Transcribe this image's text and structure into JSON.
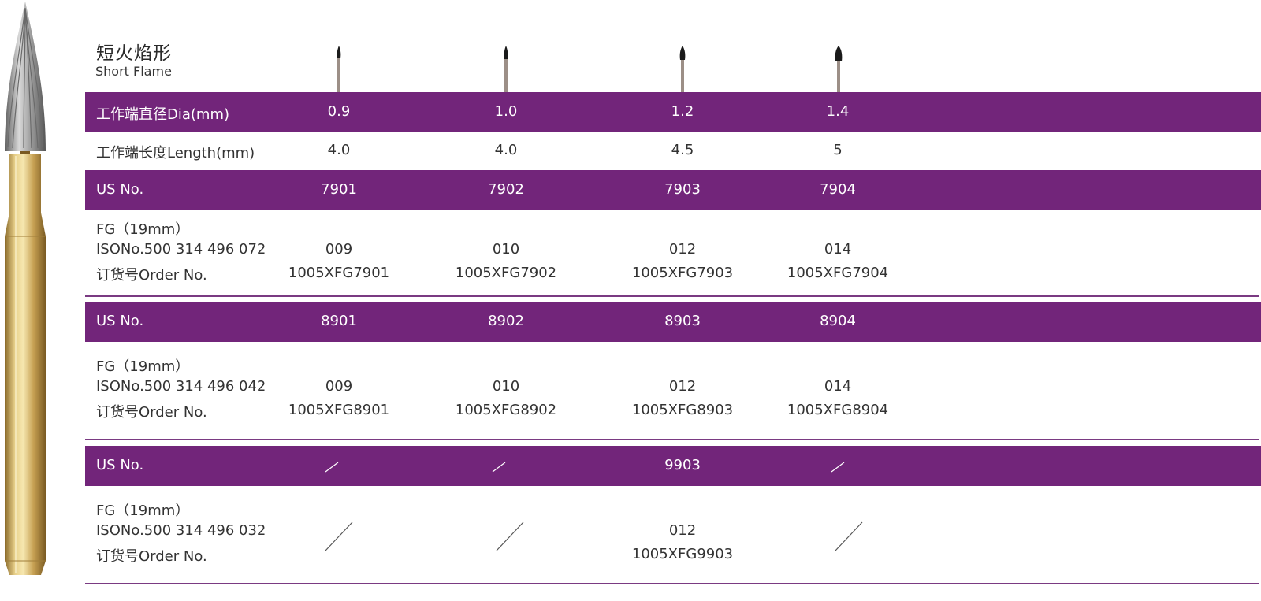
{
  "header": {
    "title_zh": "短火焰形",
    "title_en": "Short Flame"
  },
  "colors": {
    "band": "#72257a",
    "gold": "#c9a95b",
    "steel": "#9a9a9a"
  },
  "rows": {
    "dia": {
      "label": "工作端直径Dia(mm)",
      "values": [
        "0.9",
        "1.0",
        "1.2",
        "1.4"
      ]
    },
    "length": {
      "label": "工作端长度Length(mm)",
      "values": [
        "4.0",
        "4.0",
        "4.5",
        "5"
      ]
    }
  },
  "groups": [
    {
      "us_label": "US No.",
      "us_values": [
        "7901",
        "7902",
        "7903",
        "7904"
      ],
      "fg_label": "FG（19mm）",
      "iso_label": "ISONo.500 314 496 072",
      "order_label": "订货号Order No.",
      "iso_values": [
        "009",
        "010",
        "012",
        "014"
      ],
      "order_values": [
        "1005XFG7901",
        "1005XFG7902",
        "1005XFG7903",
        "1005XFG7904"
      ]
    },
    {
      "us_label": "US No.",
      "us_values": [
        "8901",
        "8902",
        "8903",
        "8904"
      ],
      "fg_label": "FG（19mm）",
      "iso_label": "ISONo.500 314 496 042",
      "order_label": "订货号Order No.",
      "iso_values": [
        "009",
        "010",
        "012",
        "014"
      ],
      "order_values": [
        "1005XFG8901",
        "1005XFG8902",
        "1005XFG8903",
        "1005XFG8904"
      ]
    },
    {
      "us_label": "US No.",
      "us_values": [
        "",
        "",
        "9903",
        ""
      ],
      "fg_label": "FG（19mm）",
      "iso_label": "ISONo.500 314 496 032",
      "order_label": "订货号Order No.",
      "iso_values": [
        "",
        "",
        "012",
        ""
      ],
      "order_values": [
        "",
        "",
        "1005XFG9903",
        ""
      ]
    }
  ]
}
